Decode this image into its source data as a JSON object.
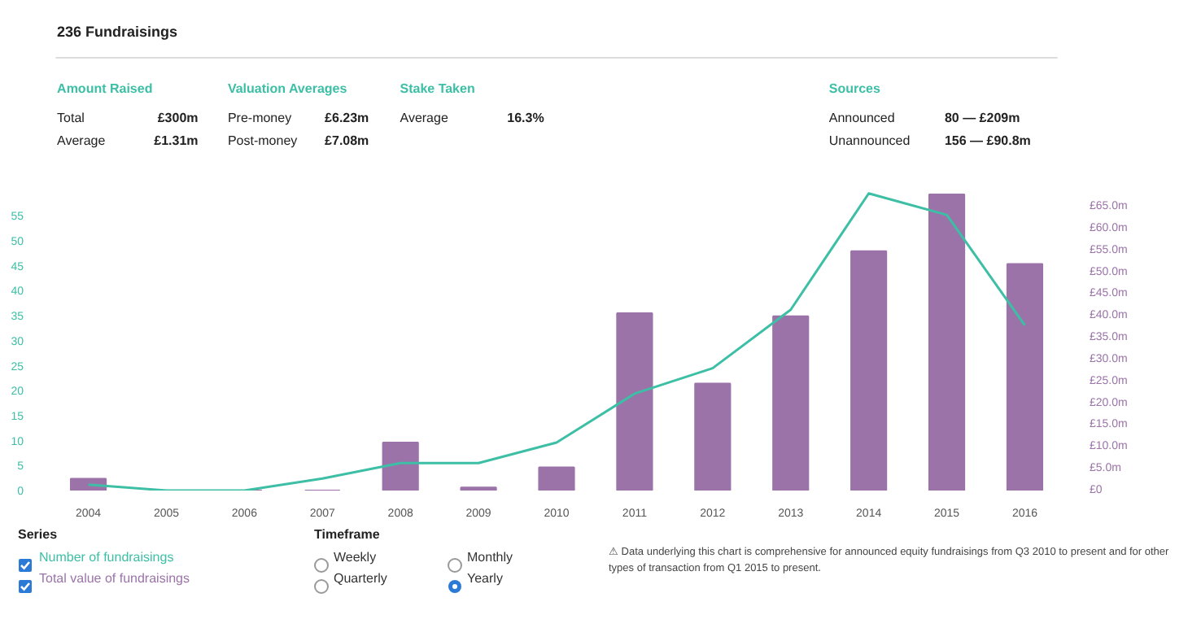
{
  "chart_data": [
    {
      "type": "other",
      "title": "236 Fundraisings",
      "annotations": [
        "Amount Raised",
        "Total",
        "£300m",
        "Average",
        "£1.31m",
        "Valuation Averages",
        "Pre-money",
        "£6.23m",
        "Post-money",
        "£7.08m",
        "Stake Taken",
        "Average",
        "16.3%",
        "Sources",
        "Announced",
        "80 — £209m",
        "Unannounced",
        "156 — £90.8m"
      ]
    },
    {
      "type": "bar",
      "categories": [
        "2004",
        "2005",
        "2006",
        "2007",
        "2008",
        "2009",
        "2010",
        "2011",
        "2012",
        "2013",
        "2014",
        "2015",
        "2016"
      ],
      "series": [
        {
          "name": "Total value of fundraisings",
          "type": "bar",
          "axis": "y2",
          "color": "#9b73a9",
          "values": [
            2.7,
            0,
            0,
            0,
            11.0,
            0.7,
            5.3,
            40.6,
            24.5,
            39.9,
            54.8,
            67.8,
            51.9
          ]
        },
        {
          "name": "Number of fundraisings",
          "type": "line",
          "color": "#3dbfa6",
          "values": [
            1.2,
            0,
            0,
            2.4,
            5.5,
            5.5,
            9.6,
            19.4,
            24.5,
            36.2,
            59.5,
            55.2,
            33.1
          ]
        }
      ],
      "ylim": [
        0,
        60.6
      ],
      "yticks": [
        0,
        5,
        10,
        15,
        20,
        25,
        30,
        35,
        40,
        45,
        50,
        55
      ],
      "y2lim": [
        0,
        69.3
      ],
      "y2ticks": [
        {
          "value": 0,
          "label": "£0"
        },
        {
          "value": 5,
          "label": "£5.0m"
        },
        {
          "value": 10,
          "label": "£10.0m"
        },
        {
          "value": 15,
          "label": "£15.0m"
        },
        {
          "value": 20,
          "label": "£20.0m"
        },
        {
          "value": 25,
          "label": "£25.0m"
        },
        {
          "value": 30,
          "label": "£30.0m"
        },
        {
          "value": 35,
          "label": "£35.0m"
        },
        {
          "value": 40,
          "label": "£40.0m"
        },
        {
          "value": 45,
          "label": "£45.0m"
        },
        {
          "value": 50,
          "label": "£50.0m"
        },
        {
          "value": 55,
          "label": "£55.0m"
        },
        {
          "value": 60,
          "label": "£60.0m"
        },
        {
          "value": 65,
          "label": "£65.0m"
        }
      ],
      "grid": false,
      "legend": "bottom left",
      "legend_title": "Series",
      "annotations": [
        "Timeframe",
        "Weekly",
        "Monthly",
        "Quarterly",
        "Yearly",
        "⚠ Data underlying this chart is comprehensive for announced equity fundraisings from Q3 2010 to present and for other types of transaction from Q1 2015 to present."
      ]
    }
  ]
}
